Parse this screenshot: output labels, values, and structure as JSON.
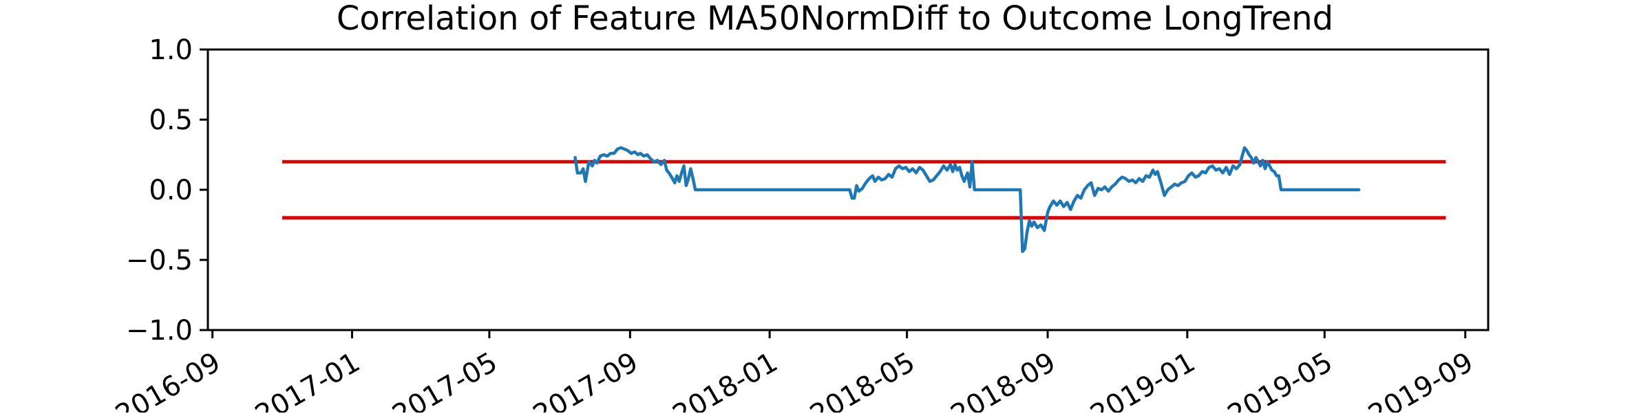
{
  "chart_data": {
    "type": "line",
    "title": "Correlation of Feature MA50NormDiff to Outcome LongTrend",
    "xlabel": "",
    "ylabel": "",
    "ylim": [
      -1.0,
      1.0
    ],
    "xlim": [
      "2016-08-28",
      "2019-09-21"
    ],
    "x_ticks": [
      "2016-09",
      "2017-01",
      "2017-05",
      "2017-09",
      "2018-01",
      "2018-05",
      "2018-09",
      "2019-01",
      "2019-05",
      "2019-09"
    ],
    "y_ticks": [
      "1.0",
      "0.5",
      "0.0",
      "−0.5",
      "−1.0"
    ],
    "grid": false,
    "legend": "none",
    "colors": {
      "series": "#1f77b4",
      "threshold": "#e00000",
      "axes": "#000000",
      "background": "#ffffff"
    },
    "thresholds": [
      {
        "y": 0.2,
        "x_start": "2016-11-01",
        "x_end": "2019-08-15"
      },
      {
        "y": -0.2,
        "x_start": "2016-11-01",
        "x_end": "2019-08-15"
      }
    ],
    "series": [
      {
        "points": [
          [
            "2017-07-15",
            0.23
          ],
          [
            "2017-07-17",
            0.12
          ],
          [
            "2017-07-20",
            0.12
          ],
          [
            "2017-07-22",
            0.15
          ],
          [
            "2017-07-24",
            0.06
          ],
          [
            "2017-07-27",
            0.2
          ],
          [
            "2017-07-30",
            0.17
          ],
          [
            "2017-08-01",
            0.21
          ],
          [
            "2017-08-03",
            0.19
          ],
          [
            "2017-08-06",
            0.24
          ],
          [
            "2017-08-09",
            0.25
          ],
          [
            "2017-08-12",
            0.24
          ],
          [
            "2017-08-15",
            0.26
          ],
          [
            "2017-08-18",
            0.26
          ],
          [
            "2017-08-21",
            0.29
          ],
          [
            "2017-08-24",
            0.3
          ],
          [
            "2017-08-27",
            0.29
          ],
          [
            "2017-08-30",
            0.28
          ],
          [
            "2017-09-02",
            0.26
          ],
          [
            "2017-09-05",
            0.27
          ],
          [
            "2017-09-08",
            0.25
          ],
          [
            "2017-09-10",
            0.26
          ],
          [
            "2017-09-13",
            0.24
          ],
          [
            "2017-09-16",
            0.25
          ],
          [
            "2017-09-19",
            0.22
          ],
          [
            "2017-09-22",
            0.2
          ],
          [
            "2017-09-25",
            0.21
          ],
          [
            "2017-09-28",
            0.18
          ],
          [
            "2017-10-01",
            0.21
          ],
          [
            "2017-10-03",
            0.14
          ],
          [
            "2017-10-05",
            0.12
          ],
          [
            "2017-10-08",
            0.08
          ],
          [
            "2017-10-10",
            0.05
          ],
          [
            "2017-10-12",
            0.1
          ],
          [
            "2017-10-14",
            0.06
          ],
          [
            "2017-10-16",
            0.12
          ],
          [
            "2017-10-18",
            0.17
          ],
          [
            "2017-10-20",
            0.03
          ],
          [
            "2017-10-22",
            0.08
          ],
          [
            "2017-10-24",
            0.15
          ],
          [
            "2017-10-26",
            0.08
          ],
          [
            "2017-10-28",
            0.0
          ],
          [
            "2018-03-12",
            0.0
          ],
          [
            "2018-03-14",
            -0.06
          ],
          [
            "2018-03-16",
            -0.06
          ],
          [
            "2018-03-18",
            0.03
          ],
          [
            "2018-03-20",
            -0.01
          ],
          [
            "2018-03-23",
            0.01
          ],
          [
            "2018-03-26",
            0.05
          ],
          [
            "2018-03-29",
            0.08
          ],
          [
            "2018-04-01",
            0.1
          ],
          [
            "2018-04-03",
            0.06
          ],
          [
            "2018-04-06",
            0.09
          ],
          [
            "2018-04-09",
            0.07
          ],
          [
            "2018-04-12",
            0.08
          ],
          [
            "2018-04-15",
            0.11
          ],
          [
            "2018-04-18",
            0.09
          ],
          [
            "2018-04-21",
            0.15
          ],
          [
            "2018-04-24",
            0.17
          ],
          [
            "2018-04-27",
            0.15
          ],
          [
            "2018-04-30",
            0.16
          ],
          [
            "2018-05-03",
            0.13
          ],
          [
            "2018-05-06",
            0.15
          ],
          [
            "2018-05-09",
            0.12
          ],
          [
            "2018-05-12",
            0.16
          ],
          [
            "2018-05-15",
            0.14
          ],
          [
            "2018-05-18",
            0.1
          ],
          [
            "2018-05-21",
            0.06
          ],
          [
            "2018-05-24",
            0.07
          ],
          [
            "2018-05-27",
            0.1
          ],
          [
            "2018-05-30",
            0.13
          ],
          [
            "2018-06-02",
            0.17
          ],
          [
            "2018-06-05",
            0.14
          ],
          [
            "2018-06-08",
            0.18
          ],
          [
            "2018-06-10",
            0.13
          ],
          [
            "2018-06-12",
            0.18
          ],
          [
            "2018-06-14",
            0.14
          ],
          [
            "2018-06-16",
            0.16
          ],
          [
            "2018-06-18",
            0.1
          ],
          [
            "2018-06-20",
            0.06
          ],
          [
            "2018-06-23",
            0.12
          ],
          [
            "2018-06-25",
            0.02
          ],
          [
            "2018-06-27",
            0.2
          ],
          [
            "2018-06-29",
            0.0
          ],
          [
            "2018-08-08",
            0.0
          ],
          [
            "2018-08-10",
            -0.44
          ],
          [
            "2018-08-12",
            -0.42
          ],
          [
            "2018-08-14",
            -0.3
          ],
          [
            "2018-08-16",
            -0.22
          ],
          [
            "2018-08-18",
            -0.26
          ],
          [
            "2018-08-20",
            -0.23
          ],
          [
            "2018-08-23",
            -0.27
          ],
          [
            "2018-08-26",
            -0.25
          ],
          [
            "2018-08-29",
            -0.29
          ],
          [
            "2018-09-01",
            -0.16
          ],
          [
            "2018-09-03",
            -0.12
          ],
          [
            "2018-09-06",
            -0.08
          ],
          [
            "2018-09-09",
            -0.11
          ],
          [
            "2018-09-12",
            -0.08
          ],
          [
            "2018-09-15",
            -0.12
          ],
          [
            "2018-09-18",
            -0.09
          ],
          [
            "2018-09-21",
            -0.14
          ],
          [
            "2018-09-24",
            -0.08
          ],
          [
            "2018-09-27",
            -0.04
          ],
          [
            "2018-09-30",
            -0.06
          ],
          [
            "2018-10-03",
            0.0
          ],
          [
            "2018-10-06",
            0.03
          ],
          [
            "2018-10-09",
            0.05
          ],
          [
            "2018-10-12",
            -0.04
          ],
          [
            "2018-10-15",
            0.01
          ],
          [
            "2018-10-18",
            0.0
          ],
          [
            "2018-10-21",
            0.02
          ],
          [
            "2018-10-24",
            -0.01
          ],
          [
            "2018-10-27",
            0.02
          ],
          [
            "2018-10-30",
            0.04
          ],
          [
            "2018-11-02",
            0.07
          ],
          [
            "2018-11-05",
            0.09
          ],
          [
            "2018-11-08",
            0.08
          ],
          [
            "2018-11-11",
            0.06
          ],
          [
            "2018-11-14",
            0.07
          ],
          [
            "2018-11-17",
            0.05
          ],
          [
            "2018-11-20",
            0.08
          ],
          [
            "2018-11-23",
            0.06
          ],
          [
            "2018-11-26",
            0.1
          ],
          [
            "2018-11-29",
            0.09
          ],
          [
            "2018-12-02",
            0.14
          ],
          [
            "2018-12-04",
            0.11
          ],
          [
            "2018-12-06",
            0.13
          ],
          [
            "2018-12-09",
            0.05
          ],
          [
            "2018-12-12",
            -0.04
          ],
          [
            "2018-12-15",
            0.0
          ],
          [
            "2018-12-18",
            0.02
          ],
          [
            "2018-12-21",
            0.04
          ],
          [
            "2018-12-24",
            0.03
          ],
          [
            "2018-12-27",
            0.05
          ],
          [
            "2018-12-30",
            0.06
          ],
          [
            "2019-01-02",
            0.1
          ],
          [
            "2019-01-05",
            0.12
          ],
          [
            "2019-01-08",
            0.09
          ],
          [
            "2019-01-11",
            0.1
          ],
          [
            "2019-01-14",
            0.13
          ],
          [
            "2019-01-17",
            0.12
          ],
          [
            "2019-01-20",
            0.16
          ],
          [
            "2019-01-23",
            0.17
          ],
          [
            "2019-01-26",
            0.14
          ],
          [
            "2019-01-29",
            0.15
          ],
          [
            "2019-02-01",
            0.12
          ],
          [
            "2019-02-04",
            0.16
          ],
          [
            "2019-02-07",
            0.11
          ],
          [
            "2019-02-10",
            0.17
          ],
          [
            "2019-02-13",
            0.15
          ],
          [
            "2019-02-16",
            0.18
          ],
          [
            "2019-02-18",
            0.24
          ],
          [
            "2019-02-20",
            0.3
          ],
          [
            "2019-02-22",
            0.28
          ],
          [
            "2019-02-24",
            0.25
          ],
          [
            "2019-02-26",
            0.23
          ],
          [
            "2019-02-28",
            0.19
          ],
          [
            "2019-03-02",
            0.23
          ],
          [
            "2019-03-04",
            0.2
          ],
          [
            "2019-03-06",
            0.17
          ],
          [
            "2019-03-08",
            0.21
          ],
          [
            "2019-03-10",
            0.15
          ],
          [
            "2019-03-12",
            0.2
          ],
          [
            "2019-03-14",
            0.17
          ],
          [
            "2019-03-16",
            0.14
          ],
          [
            "2019-03-18",
            0.13
          ],
          [
            "2019-03-20",
            0.1
          ],
          [
            "2019-03-22",
            0.1
          ],
          [
            "2019-03-24",
            0.0
          ],
          [
            "2019-05-31",
            0.0
          ]
        ]
      }
    ]
  }
}
